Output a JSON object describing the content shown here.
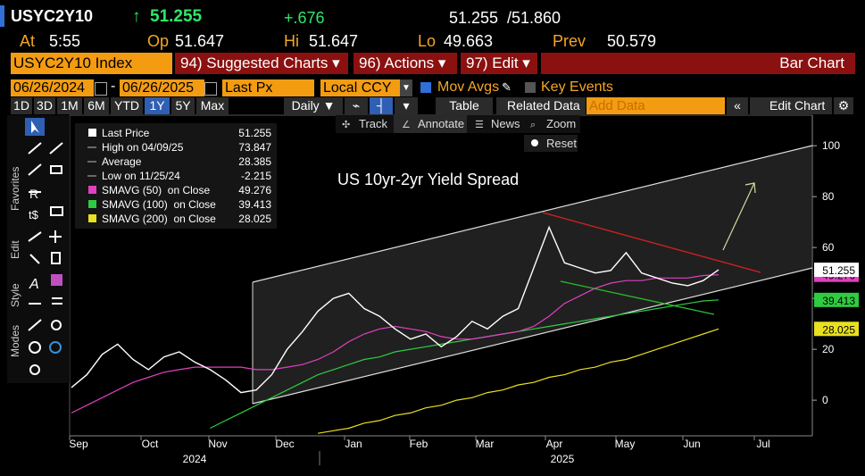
{
  "header": {
    "ticker": "USYC2Y10",
    "change": "+.676",
    "ask": "/51.860",
    "time_label": "At",
    "time": "5:55",
    "open_label": "Op",
    "open": "51.647",
    "high_label": "Hi",
    "high": "51.647",
    "low_label": "Lo",
    "low": "49.663",
    "prev_label": "Prev",
    "prev": "50.579"
  },
  "menu": {
    "security": "USYC2Y10 Index",
    "items": [
      "94) Suggested Charts ▾",
      "96) Actions ▾",
      "97) Edit ▾"
    ],
    "chart_kind": "Bar Chart"
  },
  "controls": {
    "start_date": "06/26/2024",
    "end_date": "06/26/2025",
    "field": "Last Px",
    "currency": "Local CCY",
    "mov_avgs": "Mov Avgs",
    "key_events": "Key Events"
  },
  "periods": [
    "1D",
    "3D",
    "1M",
    "6M",
    "YTD",
    "1Y",
    "5Y",
    "Max"
  ],
  "selected_period": "1Y",
  "frequency": "Daily ▼",
  "buttons": [
    "Table",
    "Related Data",
    "Edit Chart"
  ],
  "add_data_placeholder": "Add Data",
  "chart_tools": [
    "Track",
    "Annotate",
    "News",
    "Zoom",
    "Reset"
  ],
  "side_tabs": [
    "Favorites",
    "Edit",
    "Style",
    "Modes"
  ],
  "chart_data": {
    "type": "line",
    "title": "US 10yr-2yr Yield Spread",
    "x_labels": [
      "Sep",
      "Oct",
      "Nov",
      "Dec",
      "Jan",
      "Feb",
      "Mar",
      "Apr",
      "May",
      "Jun",
      "Jul"
    ],
    "year_labels": [
      "2024",
      "2025"
    ],
    "ylim": [
      -14,
      112
    ],
    "yticks": [
      0,
      20,
      40,
      60,
      80,
      100
    ],
    "series": [
      {
        "name": "Last Price",
        "color": "#ffffff",
        "values": [
          5,
          10,
          18,
          22,
          16,
          12,
          17,
          19,
          15,
          12,
          8,
          3,
          4,
          10,
          20,
          27,
          35,
          40,
          42,
          36,
          33,
          28,
          24,
          26,
          21,
          25,
          31,
          28,
          33,
          36,
          52,
          68,
          54,
          52,
          50,
          51,
          58,
          50,
          48,
          46,
          45,
          47,
          51.255
        ]
      },
      {
        "name": "SMAVG (50)  on Close",
        "color": "#e040c0",
        "values": [
          -5,
          -2,
          1,
          4,
          7,
          9,
          11,
          12,
          13,
          13,
          13,
          13,
          12,
          12,
          13,
          14,
          16,
          19,
          23,
          26,
          28,
          29,
          28,
          27,
          25,
          24,
          24,
          25,
          26,
          27,
          29,
          33,
          38,
          41,
          44,
          46,
          47,
          47,
          48,
          48,
          48,
          49,
          49.276
        ]
      },
      {
        "name": "SMAVG (100)  on Close",
        "color": "#2ecc40",
        "values": [
          null,
          null,
          null,
          null,
          null,
          null,
          null,
          null,
          null,
          -11,
          -8,
          -5,
          -2,
          1,
          4,
          7,
          10,
          12,
          14,
          16,
          17,
          19,
          20,
          21,
          22,
          23,
          24,
          25,
          26,
          27,
          28,
          29,
          30,
          31,
          32,
          33,
          34,
          35,
          36,
          37,
          38,
          39,
          39.413
        ]
      },
      {
        "name": "SMAVG (200)  on Close",
        "color": "#e8e020",
        "values": [
          null,
          null,
          null,
          null,
          null,
          null,
          null,
          null,
          null,
          null,
          null,
          null,
          null,
          null,
          null,
          null,
          -13,
          -12,
          -11,
          -9,
          -8,
          -6,
          -5,
          -3,
          -2,
          0,
          1,
          3,
          4,
          6,
          7,
          9,
          10,
          12,
          13,
          15,
          16,
          18,
          20,
          22,
          24,
          26,
          28.025
        ]
      }
    ],
    "stats": [
      {
        "name": "High on 04/09/25",
        "value": 73.847
      },
      {
        "name": "Average",
        "value": 28.385
      },
      {
        "name": "Low on 11/25/24",
        "value": -2.215
      }
    ]
  }
}
